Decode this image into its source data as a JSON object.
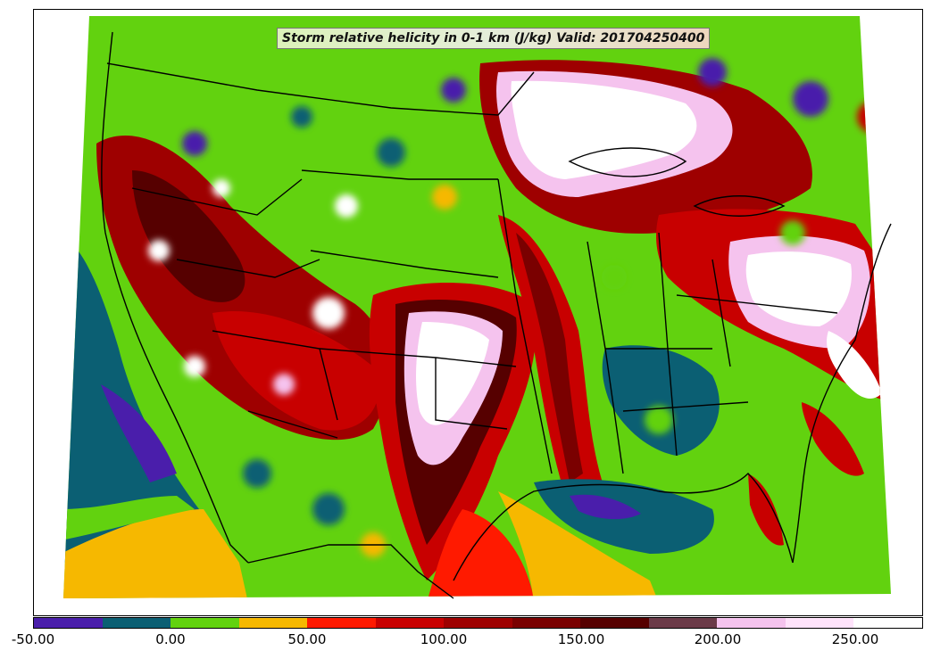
{
  "title": "Storm relative helicity in 0-1 km (J/kg) Valid: 201704250400",
  "colorbar": {
    "colors": [
      "#4a1eab",
      "#0b5f73",
      "#62d20f",
      "#f6b800",
      "#ff1a00",
      "#c80000",
      "#9e0000",
      "#7a0000",
      "#560000",
      "#6b3a48",
      "#f5c3ee",
      "#ffe3fb",
      "#ffffff"
    ],
    "tick_labels": [
      "-50.00",
      "0.00",
      "50.00",
      "100.00",
      "150.00",
      "200.00",
      "250.00"
    ]
  },
  "legend_colors": {
    "ocean_low": "#0b5f73",
    "land_base": "#62d20f",
    "high": "#ffe3fb",
    "border": "#000000"
  }
}
